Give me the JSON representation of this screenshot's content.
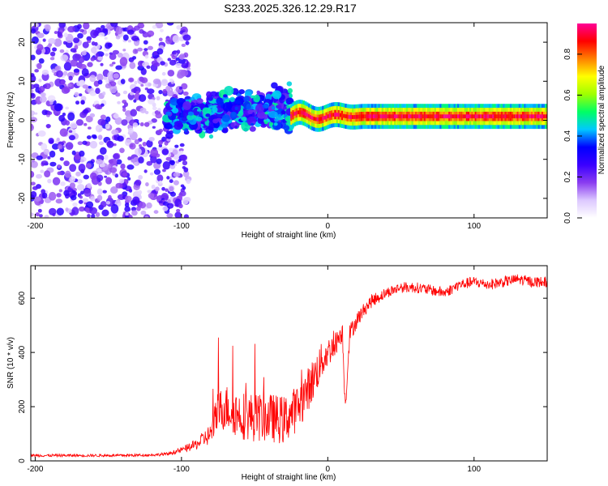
{
  "chart_data": [
    {
      "type": "heatmap",
      "title": "S233.2025.326.12.29.R17",
      "xlabel": "Height of straight line (km)",
      "ylabel": "Frequency (Hz)",
      "xlim": [
        -203,
        150
      ],
      "ylim": [
        -25,
        25
      ],
      "xticks": [
        -200,
        -100,
        0,
        100
      ],
      "xtick_labels": [
        "-200",
        "-100",
        "0",
        "100"
      ],
      "yticks": [
        -20,
        -10,
        0,
        10,
        20
      ],
      "ytick_labels": [
        "-20",
        "-10",
        "0",
        "10",
        "20"
      ],
      "colorbar": {
        "label": "Normalized spectral amplitude",
        "range": [
          0.0,
          0.95
        ],
        "ticks": [
          0.0,
          0.2,
          0.4,
          0.6,
          0.8
        ],
        "tick_labels": [
          "0.0",
          "0.2",
          "0.4",
          "0.6",
          "0.8"
        ],
        "colors": [
          "#ffffff",
          "#dcc8ff",
          "#8a3cf0",
          "#3a00ff",
          "#0000ff",
          "#00c8ff",
          "#00ff64",
          "#9fff00",
          "#ffff00",
          "#ff8000",
          "#ff0000",
          "#ff0096"
        ]
      },
      "regions": [
        {
          "description": "scattered noise",
          "x": [
            -203,
            -95
          ],
          "freq_range": [
            -25,
            25
          ],
          "amplitude": [
            0.05,
            0.3
          ]
        },
        {
          "description": "turbulent signal",
          "x": [
            -110,
            -25
          ],
          "freq_range": [
            -10,
            10
          ],
          "amplitude": [
            0.2,
            0.5
          ]
        },
        {
          "description": "stable tone",
          "x": [
            -25,
            150
          ],
          "freq": 1,
          "amplitude": [
            0.6,
            0.9
          ]
        }
      ]
    },
    {
      "type": "line",
      "xlabel": "Height of straight line (km)",
      "ylabel": "SNR (10 * v/v)",
      "xlim": [
        -203,
        150
      ],
      "ylim": [
        0,
        720
      ],
      "xticks": [
        -200,
        -100,
        0,
        100
      ],
      "xtick_labels": [
        "-200",
        "-100",
        "0",
        "100"
      ],
      "yticks": [
        0,
        200,
        400,
        600
      ],
      "ytick_labels": [
        "0",
        "200",
        "400",
        "600"
      ],
      "series": [
        {
          "name": "SNR",
          "color": "#ff0000",
          "x": [
            -203,
            -180,
            -160,
            -140,
            -120,
            -110,
            -100,
            -90,
            -80,
            -75,
            -70,
            -60,
            -50,
            -40,
            -30,
            -20,
            -15,
            -10,
            -5,
            0,
            5,
            10,
            12,
            15,
            20,
            25,
            30,
            40,
            50,
            60,
            70,
            80,
            90,
            100,
            110,
            120,
            130,
            140,
            150
          ],
          "y": [
            20,
            20,
            20,
            20,
            22,
            25,
            40,
            60,
            100,
            180,
            200,
            170,
            160,
            160,
            150,
            200,
            250,
            300,
            360,
            400,
            430,
            480,
            200,
            470,
            520,
            560,
            590,
            620,
            640,
            640,
            630,
            620,
            650,
            660,
            650,
            660,
            670,
            660,
            660
          ],
          "spread": [
            10,
            10,
            10,
            10,
            10,
            12,
            20,
            40,
            80,
            160,
            170,
            180,
            180,
            180,
            180,
            170,
            160,
            160,
            140,
            110,
            90,
            80,
            60,
            70,
            60,
            50,
            50,
            40,
            40,
            40,
            40,
            40,
            40,
            40,
            40,
            40,
            40,
            40,
            40
          ]
        }
      ]
    }
  ]
}
